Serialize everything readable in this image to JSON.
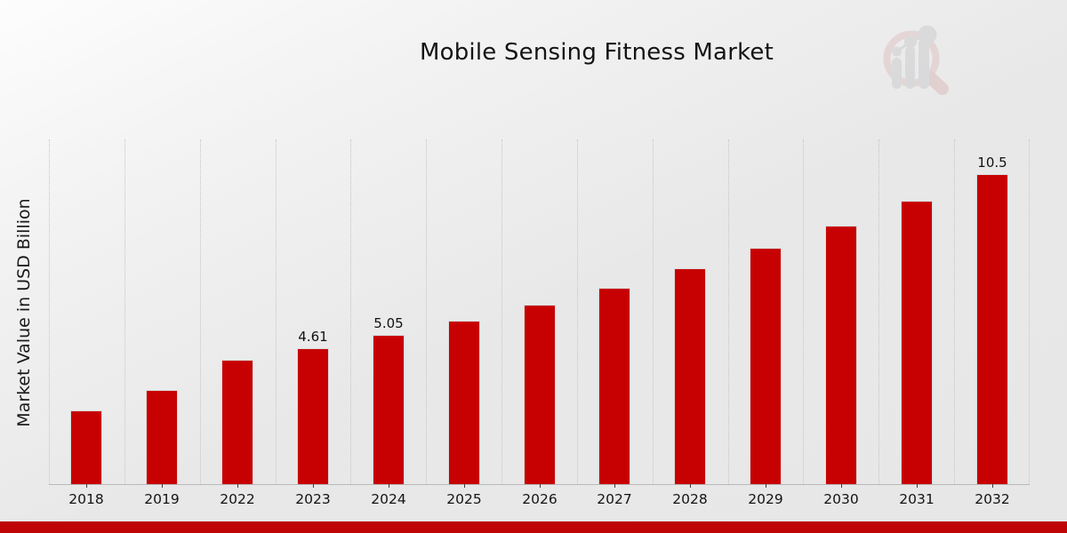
{
  "header": {
    "title": "Mobile Sensing Fitness Market",
    "logo_name": "market-research-future-logo"
  },
  "y_axis": {
    "label": "Market Value in USD Billion"
  },
  "colors": {
    "bar": "#c70101",
    "bar_edge": "#dadada",
    "gridline": "#c5c5c5",
    "axis_line": "#b9b9b9",
    "text": "#141414",
    "footer_stripe": "#bf0505",
    "logo_ring": "#dcb9b9",
    "logo_bars": "#c3c3c7"
  },
  "chart_data": {
    "type": "bar",
    "title": "Mobile Sensing Fitness Market",
    "xlabel": "",
    "ylabel": "Market Value in USD Billion",
    "categories": [
      "2018",
      "2019",
      "2022",
      "2023",
      "2024",
      "2025",
      "2026",
      "2027",
      "2028",
      "2029",
      "2030",
      "2031",
      "2032"
    ],
    "values": [
      2.5,
      3.19,
      4.2,
      4.61,
      5.05,
      5.54,
      6.07,
      6.65,
      7.29,
      7.99,
      8.75,
      9.59,
      10.5
    ],
    "unit": "USD Billion",
    "data_labels": {
      "2023": "4.61",
      "2024": "5.05",
      "2032": "10.5"
    },
    "ylim": [
      0,
      11.66
    ],
    "grid": "vertical-dotted",
    "legend": "none",
    "bar_color": "#c70101"
  }
}
